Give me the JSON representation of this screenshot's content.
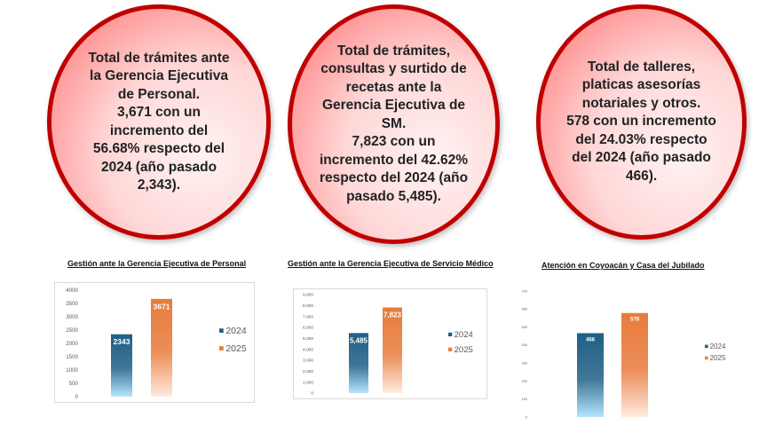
{
  "bubbles": [
    {
      "text": "Total de trámites ante\nla Gerencia Ejecutiva\nde Personal.\n3,671 con un\nincremento del\n56.68% respecto del\n2024 (año pasado\n2,343)."
    },
    {
      "text": "Total de trámites,\nconsultas y surtido de\nrecetas ante la\nGerencia Ejecutiva de\nSM.\n7,823 con un\nincremento del 42.62%\nrespecto del 2024 (año\npasado 5,485)."
    },
    {
      "text": "Total de talleres,\nplaticas asesorías\nnotariales y otros.\n578 con un incremento\ndel 24.03% respecto\ndel 2024 (año pasado\n466)."
    }
  ],
  "colors": {
    "blue": "#1f5f86",
    "orange": "#e87b3c",
    "circle_border": "#c00000"
  },
  "chart_data": [
    {
      "type": "bar",
      "title": "Gestión ante la Gerencia  Ejecutiva de Personal",
      "categories": [
        "2024",
        "2025"
      ],
      "values": [
        2343,
        3671
      ],
      "value_labels": [
        "2343",
        "3671"
      ],
      "legend": [
        "2024",
        "2025"
      ],
      "legend_position": "right",
      "ylim": [
        0,
        4000
      ],
      "yticks": [
        0,
        500,
        1000,
        1500,
        2000,
        2500,
        3000,
        3500,
        4000
      ],
      "ytick_labels": [
        "0",
        "500",
        "1000",
        "1500",
        "2000",
        "2500",
        "3000",
        "3500",
        "4000"
      ],
      "grid": false
    },
    {
      "type": "bar",
      "title": "Gestión ante la Gerencia  Ejecutiva de Servicio Médico",
      "categories": [
        "2024",
        "2025"
      ],
      "values": [
        5485,
        7823
      ],
      "value_labels": [
        "5,485",
        "7,823"
      ],
      "legend": [
        "2024",
        "2025"
      ],
      "legend_position": "right",
      "ylim": [
        0,
        9000
      ],
      "yticks": [
        0,
        1000,
        2000,
        3000,
        4000,
        5000,
        6000,
        7000,
        8000,
        9000
      ],
      "ytick_labels": [
        "0",
        "1,000",
        "2,000",
        "3,000",
        "4,000",
        "5,000",
        "6,000",
        "7,000",
        "8,000",
        "9,000"
      ],
      "grid": false
    },
    {
      "type": "bar",
      "title": "Atención en Coyoacán y Casa del Jubilado",
      "categories": [
        "2024",
        "2025"
      ],
      "values": [
        466,
        578
      ],
      "value_labels": [
        "466",
        "578"
      ],
      "legend": [
        "2024",
        "2025"
      ],
      "legend_position": "right",
      "ylim": [
        0,
        700
      ],
      "yticks": [
        0,
        100,
        200,
        300,
        400,
        500,
        600,
        700
      ],
      "ytick_labels": [
        "0",
        "100",
        "200",
        "300",
        "400",
        "500",
        "600",
        "700"
      ],
      "grid": false
    }
  ]
}
